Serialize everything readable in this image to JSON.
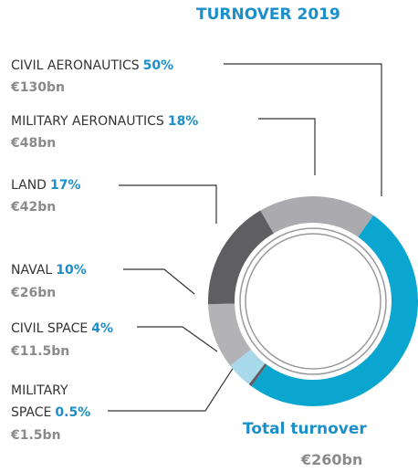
{
  "chart_data": {
    "type": "donut",
    "title": "TURNOVER 2019",
    "categories": [
      "CIVIL AERONAUTICS",
      "MILITARY AERONAUTICS",
      "LAND",
      "NAVAL",
      "CIVIL SPACE",
      "MILITARY SPACE"
    ],
    "values": [
      50,
      18,
      17,
      10,
      4,
      0.5
    ],
    "value_labels": [
      "50%",
      "18%",
      "17%",
      "10%",
      "4%",
      "0.5%"
    ],
    "amount_labels": [
      "€130bn",
      "€48bn",
      "€42bn",
      "€26bn",
      "€11.5bn",
      "€1.5bn"
    ],
    "colors": [
      "#0aa6d0",
      "#ababaf",
      "#5f5f63",
      "#b3b3b6",
      "#a8d9eb",
      "#5f5f63"
    ],
    "total_label": "Total turnover",
    "total_value_label": "€260bn"
  }
}
